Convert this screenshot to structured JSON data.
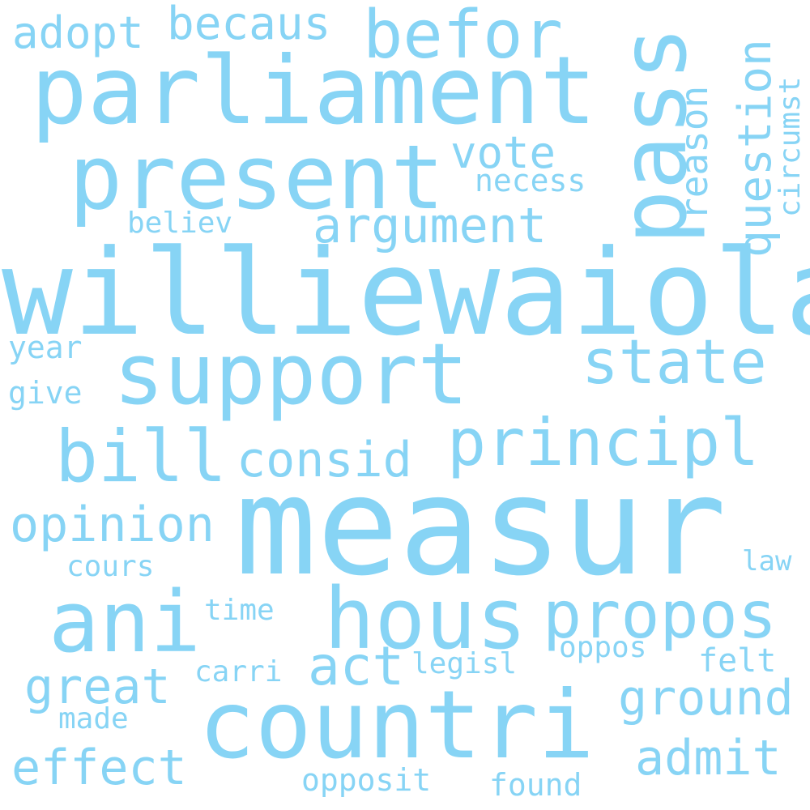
{
  "word_color": "#87d4f5",
  "background_color": "#ffffff",
  "words": {
    "williewaiola": "williewaiola",
    "measur": "measur",
    "parliament": "parliament",
    "present": "present",
    "countri": "countri",
    "support": "support",
    "hous": "hous",
    "pass": "pass",
    "ani": "ani",
    "propos": "propos",
    "principl": "principl",
    "bill": "bill",
    "befor": "befor",
    "state": "state",
    "argument": "argument",
    "consid": "consid",
    "opinion": "opinion",
    "ground": "ground",
    "effect": "effect",
    "great": "great",
    "act": "act",
    "admit": "admit",
    "becaus": "becaus",
    "adopt": "adopt",
    "vote": "vote",
    "reason": "reason",
    "question": "question",
    "necess": "necess",
    "believ": "believ",
    "circumst": "circumst",
    "year": "year",
    "give": "give",
    "cours": "cours",
    "time": "time",
    "law": "law",
    "oppos": "oppos",
    "felt": "felt",
    "carri": "carri",
    "legisl": "legisl",
    "made": "made",
    "opposit": "opposit",
    "found": "found"
  }
}
